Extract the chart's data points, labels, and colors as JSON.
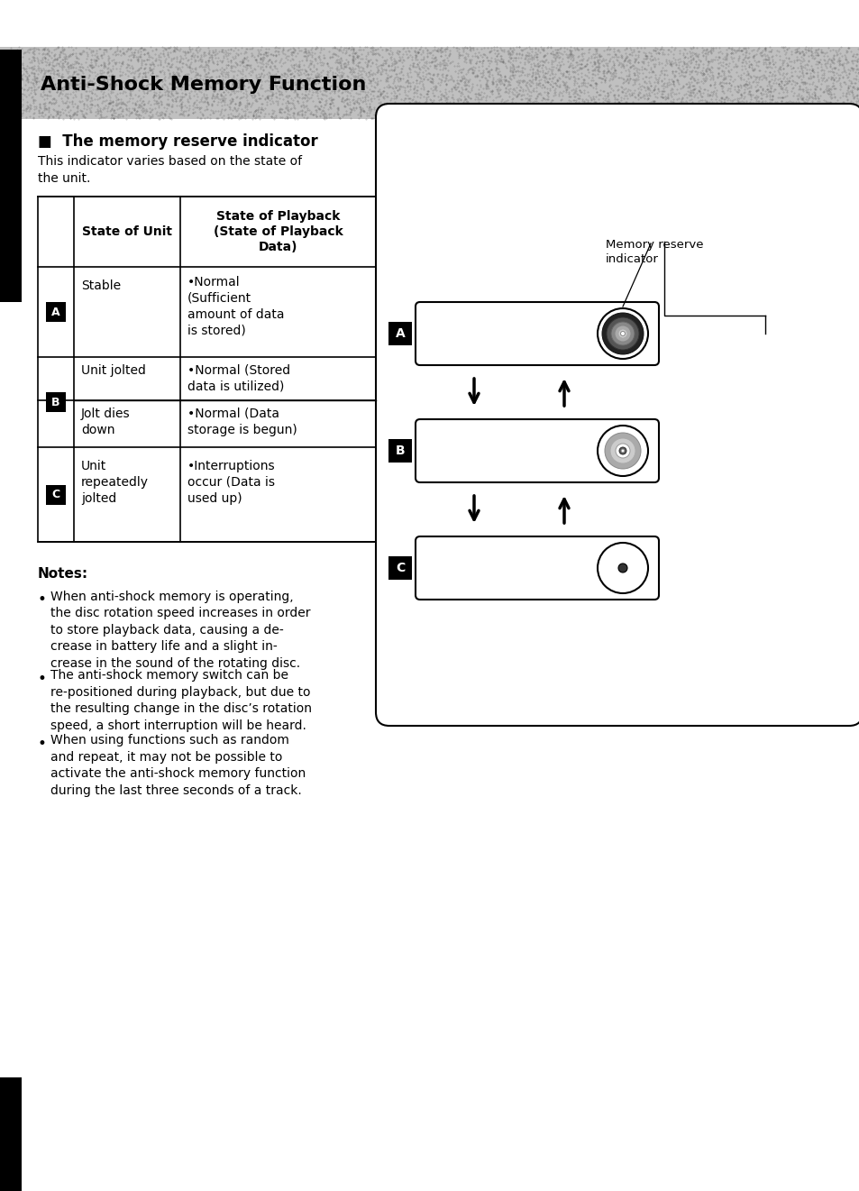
{
  "title": "Anti-Shock Memory Function",
  "bg_color": "#ffffff",
  "section_title": "■  The memory reserve indicator",
  "section_desc": "This indicator varies based on the state of\nthe unit.",
  "notes_title": "Notes:",
  "note1": "When anti-shock memory is operating,\nthe disc rotation speed increases in order\nto store playback data, causing a de-\ncrease in battery life and a slight in-\ncrease in the sound of the rotating disc.",
  "note2": "The anti-shock memory switch can be\nre-positioned during playback, but due to\nthe resulting change in the disc’s rotation\nspeed, a short interruption will be heard.",
  "note3": "When using functions such as random\nand repeat, it may not be possible to\nactivate the anti-shock memory function\nduring the last three seconds of a track.",
  "memory_label": "Memory reserve\nindicator",
  "header_gray": "#c0c0c0",
  "black": "#000000",
  "white": "#ffffff",
  "dark_gray": "#333333",
  "mid_gray": "#888888",
  "light_gray": "#bbbbbb"
}
